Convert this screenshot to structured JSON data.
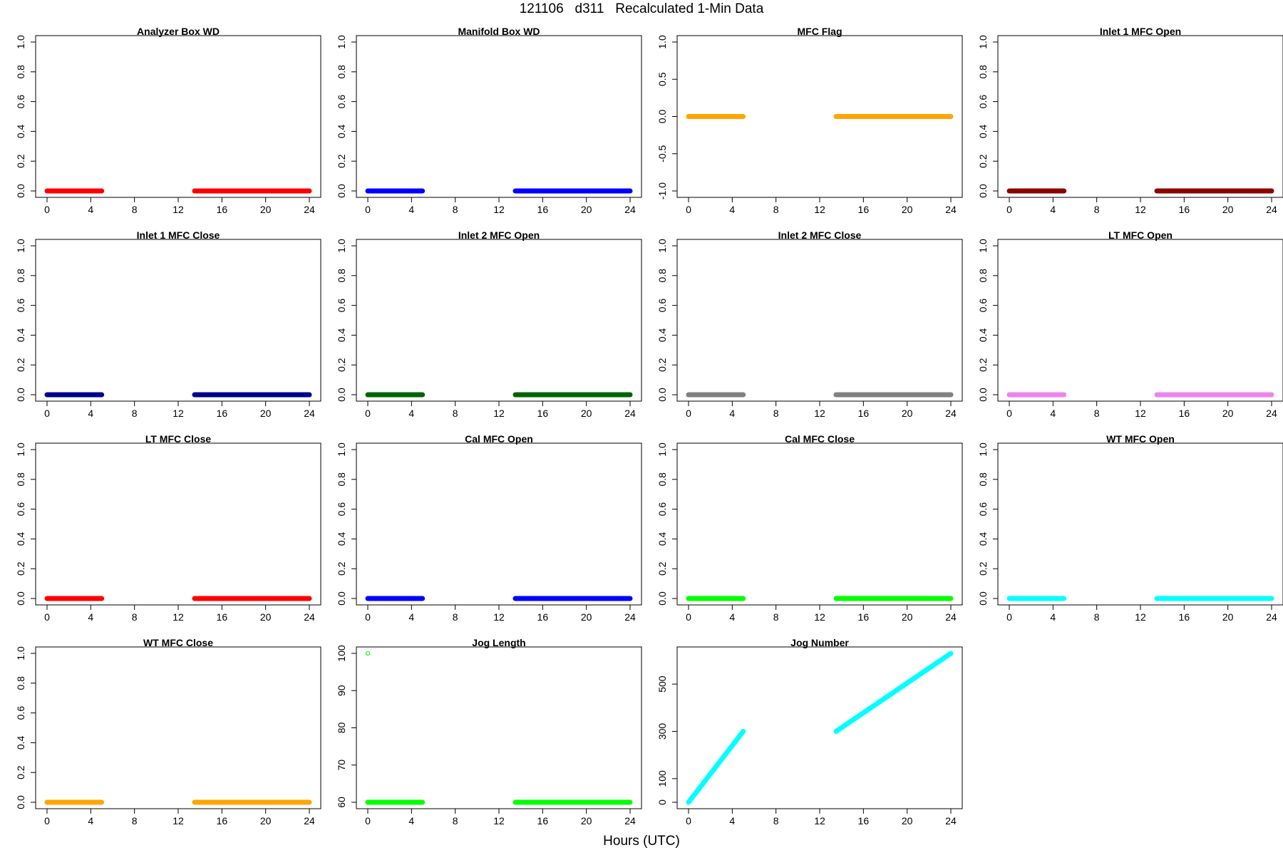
{
  "figure": {
    "title": "121106   d311   Recalculated 1-Min Data",
    "xlabel": "Hours (UTC)"
  },
  "chart_data": [
    {
      "type": "scatter",
      "title": "Analyzer Box WD",
      "color": "#ff0000",
      "xlim": [
        0,
        24
      ],
      "ylim": [
        0,
        1
      ],
      "xticks": [
        0,
        4,
        8,
        12,
        16,
        20,
        24
      ],
      "yticks": [
        "0.0",
        "0.2",
        "0.4",
        "0.6",
        "0.8",
        "1.0"
      ],
      "segments": [
        {
          "x": [
            0,
            5
          ],
          "y": [
            0,
            0
          ]
        },
        {
          "x": [
            13.5,
            24
          ],
          "y": [
            0,
            0
          ]
        }
      ]
    },
    {
      "type": "scatter",
      "title": "Manifold Box WD",
      "color": "#0000ff",
      "xlim": [
        0,
        24
      ],
      "ylim": [
        0,
        1
      ],
      "xticks": [
        0,
        4,
        8,
        12,
        16,
        20,
        24
      ],
      "yticks": [
        "0.0",
        "0.2",
        "0.4",
        "0.6",
        "0.8",
        "1.0"
      ],
      "segments": [
        {
          "x": [
            0,
            5
          ],
          "y": [
            0,
            0
          ]
        },
        {
          "x": [
            13.5,
            24
          ],
          "y": [
            0,
            0
          ]
        }
      ]
    },
    {
      "type": "scatter",
      "title": "MFC Flag",
      "color": "#ffa500",
      "xlim": [
        0,
        24
      ],
      "ylim": [
        -1,
        1
      ],
      "xticks": [
        0,
        4,
        8,
        12,
        16,
        20,
        24
      ],
      "yticks": [
        "-1.0",
        "-0.5",
        "0.0",
        "0.5",
        "1.0"
      ],
      "segments": [
        {
          "x": [
            0,
            5
          ],
          "y": [
            0,
            0
          ]
        },
        {
          "x": [
            13.5,
            24
          ],
          "y": [
            0,
            0
          ]
        }
      ]
    },
    {
      "type": "scatter",
      "title": "Inlet 1 MFC Open",
      "color": "#8b0000",
      "xlim": [
        0,
        24
      ],
      "ylim": [
        0,
        1
      ],
      "xticks": [
        0,
        4,
        8,
        12,
        16,
        20,
        24
      ],
      "yticks": [
        "0.0",
        "0.2",
        "0.4",
        "0.6",
        "0.8",
        "1.0"
      ],
      "segments": [
        {
          "x": [
            0,
            5
          ],
          "y": [
            0,
            0
          ]
        },
        {
          "x": [
            13.5,
            24
          ],
          "y": [
            0,
            0
          ]
        }
      ]
    },
    {
      "type": "scatter",
      "title": "Inlet 1 MFC Close",
      "color": "#00008b",
      "xlim": [
        0,
        24
      ],
      "ylim": [
        0,
        1
      ],
      "xticks": [
        0,
        4,
        8,
        12,
        16,
        20,
        24
      ],
      "yticks": [
        "0.0",
        "0.2",
        "0.4",
        "0.6",
        "0.8",
        "1.0"
      ],
      "segments": [
        {
          "x": [
            0,
            5
          ],
          "y": [
            0,
            0
          ]
        },
        {
          "x": [
            13.5,
            24
          ],
          "y": [
            0,
            0
          ]
        }
      ]
    },
    {
      "type": "scatter",
      "title": "Inlet 2 MFC Open",
      "color": "#006400",
      "xlim": [
        0,
        24
      ],
      "ylim": [
        0,
        1
      ],
      "xticks": [
        0,
        4,
        8,
        12,
        16,
        20,
        24
      ],
      "yticks": [
        "0.0",
        "0.2",
        "0.4",
        "0.6",
        "0.8",
        "1.0"
      ],
      "segments": [
        {
          "x": [
            0,
            5
          ],
          "y": [
            0,
            0
          ]
        },
        {
          "x": [
            13.5,
            24
          ],
          "y": [
            0,
            0
          ]
        }
      ]
    },
    {
      "type": "scatter",
      "title": "Inlet 2 MFC Close",
      "color": "#808080",
      "xlim": [
        0,
        24
      ],
      "ylim": [
        0,
        1
      ],
      "xticks": [
        0,
        4,
        8,
        12,
        16,
        20,
        24
      ],
      "yticks": [
        "0.0",
        "0.2",
        "0.4",
        "0.6",
        "0.8",
        "1.0"
      ],
      "segments": [
        {
          "x": [
            0,
            5
          ],
          "y": [
            0,
            0
          ]
        },
        {
          "x": [
            13.5,
            24
          ],
          "y": [
            0,
            0
          ]
        }
      ]
    },
    {
      "type": "scatter",
      "title": "LT MFC Open",
      "color": "#ee82ee",
      "xlim": [
        0,
        24
      ],
      "ylim": [
        0,
        1
      ],
      "xticks": [
        0,
        4,
        8,
        12,
        16,
        20,
        24
      ],
      "yticks": [
        "0.0",
        "0.2",
        "0.4",
        "0.6",
        "0.8",
        "1.0"
      ],
      "segments": [
        {
          "x": [
            0,
            5
          ],
          "y": [
            0,
            0
          ]
        },
        {
          "x": [
            13.5,
            24
          ],
          "y": [
            0,
            0
          ]
        }
      ]
    },
    {
      "type": "scatter",
      "title": "LT MFC Close",
      "color": "#ff0000",
      "xlim": [
        0,
        24
      ],
      "ylim": [
        0,
        1
      ],
      "xticks": [
        0,
        4,
        8,
        12,
        16,
        20,
        24
      ],
      "yticks": [
        "0.0",
        "0.2",
        "0.4",
        "0.6",
        "0.8",
        "1.0"
      ],
      "segments": [
        {
          "x": [
            0,
            5
          ],
          "y": [
            0,
            0
          ]
        },
        {
          "x": [
            13.5,
            24
          ],
          "y": [
            0,
            0
          ]
        }
      ]
    },
    {
      "type": "scatter",
      "title": "Cal MFC Open",
      "color": "#0000ff",
      "xlim": [
        0,
        24
      ],
      "ylim": [
        0,
        1
      ],
      "xticks": [
        0,
        4,
        8,
        12,
        16,
        20,
        24
      ],
      "yticks": [
        "0.0",
        "0.2",
        "0.4",
        "0.6",
        "0.8",
        "1.0"
      ],
      "segments": [
        {
          "x": [
            0,
            5
          ],
          "y": [
            0,
            0
          ]
        },
        {
          "x": [
            13.5,
            24
          ],
          "y": [
            0,
            0
          ]
        }
      ]
    },
    {
      "type": "scatter",
      "title": "Cal MFC Close",
      "color": "#00ff00",
      "xlim": [
        0,
        24
      ],
      "ylim": [
        0,
        1
      ],
      "xticks": [
        0,
        4,
        8,
        12,
        16,
        20,
        24
      ],
      "yticks": [
        "0.0",
        "0.2",
        "0.4",
        "0.6",
        "0.8",
        "1.0"
      ],
      "segments": [
        {
          "x": [
            0,
            5
          ],
          "y": [
            0,
            0
          ]
        },
        {
          "x": [
            13.5,
            24
          ],
          "y": [
            0,
            0
          ]
        }
      ]
    },
    {
      "type": "scatter",
      "title": "WT MFC Open",
      "color": "#00ffff",
      "xlim": [
        0,
        24
      ],
      "ylim": [
        0,
        1
      ],
      "xticks": [
        0,
        4,
        8,
        12,
        16,
        20,
        24
      ],
      "yticks": [
        "0.0",
        "0.2",
        "0.4",
        "0.6",
        "0.8",
        "1.0"
      ],
      "segments": [
        {
          "x": [
            0,
            5
          ],
          "y": [
            0,
            0
          ]
        },
        {
          "x": [
            13.5,
            24
          ],
          "y": [
            0,
            0
          ]
        }
      ]
    },
    {
      "type": "scatter",
      "title": "WT MFC Close",
      "color": "#ffa500",
      "xlim": [
        0,
        24
      ],
      "ylim": [
        0,
        1
      ],
      "xticks": [
        0,
        4,
        8,
        12,
        16,
        20,
        24
      ],
      "yticks": [
        "0.0",
        "0.2",
        "0.4",
        "0.6",
        "0.8",
        "1.0"
      ],
      "segments": [
        {
          "x": [
            0,
            5
          ],
          "y": [
            0,
            0
          ]
        },
        {
          "x": [
            13.5,
            24
          ],
          "y": [
            0,
            0
          ]
        }
      ]
    },
    {
      "type": "scatter",
      "title": "Jog Length",
      "color": "#00ff00",
      "xlim": [
        0,
        24
      ],
      "ylim": [
        60,
        100
      ],
      "xticks": [
        0,
        4,
        8,
        12,
        16,
        20,
        24
      ],
      "yticks": [
        "60",
        "70",
        "80",
        "90",
        "100"
      ],
      "segments": [
        {
          "x": [
            0,
            5
          ],
          "y": [
            60,
            60
          ]
        },
        {
          "x": [
            13.5,
            24
          ],
          "y": [
            60,
            60
          ]
        }
      ],
      "points": [
        {
          "x": 0,
          "y": 100
        }
      ]
    },
    {
      "type": "scatter",
      "title": "Jog Number",
      "color": "#00ffff",
      "xlim": [
        0,
        24
      ],
      "ylim": [
        0,
        630
      ],
      "xticks": [
        0,
        4,
        8,
        12,
        16,
        20,
        24
      ],
      "yticks": [
        "0",
        "100",
        "300",
        "500"
      ],
      "segments": [
        {
          "x": [
            0,
            5
          ],
          "y": [
            0,
            300
          ]
        },
        {
          "x": [
            13.5,
            24
          ],
          "y": [
            300,
            630
          ]
        }
      ]
    }
  ]
}
